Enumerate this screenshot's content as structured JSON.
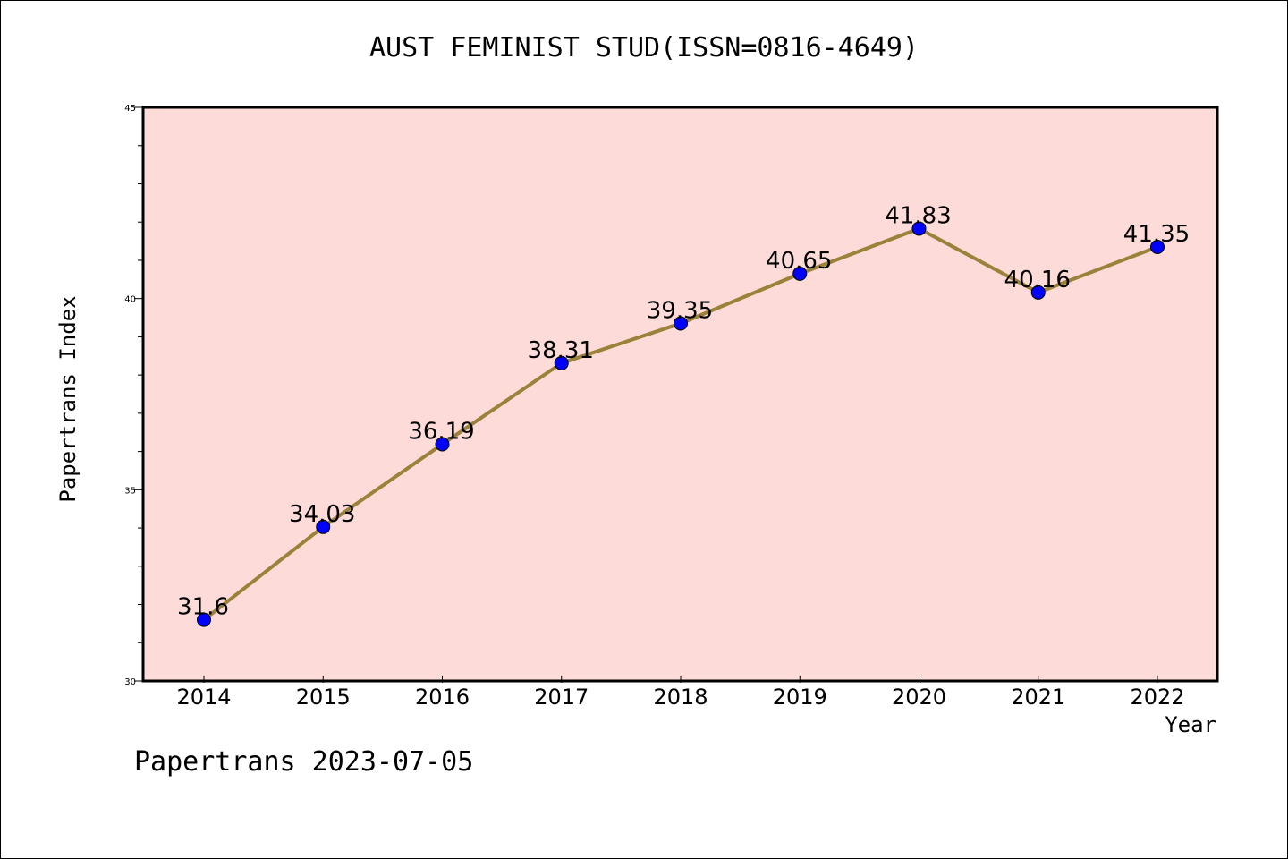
{
  "title": "AUST FEMINIST STUD(ISSN=0816-4649)",
  "footer": "Papertrans 2023-07-05",
  "colors": {
    "plot_background": "#fddbd8",
    "line": "#9b8139",
    "marker": "#0000ff"
  },
  "chart_data": {
    "type": "line",
    "title": "AUST FEMINIST STUD(ISSN=0816-4649)",
    "xlabel": "Year",
    "ylabel": "Papertrans Index",
    "categories": [
      "2014",
      "2015",
      "2016",
      "2017",
      "2018",
      "2019",
      "2020",
      "2021",
      "2022"
    ],
    "values": [
      31.6,
      34.03,
      36.19,
      38.31,
      39.35,
      40.65,
      41.83,
      40.16,
      41.35
    ],
    "data_labels": [
      "31.6",
      "34.03",
      "36.19",
      "38.31",
      "39.35",
      "40.65",
      "41.83",
      "40.16",
      "41.35"
    ],
    "ylim": [
      30,
      45
    ],
    "yticks": [
      "30",
      "35",
      "40",
      "45"
    ],
    "grid": false,
    "legend": "none"
  }
}
